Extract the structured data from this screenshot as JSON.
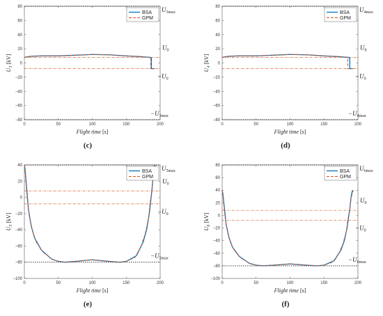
{
  "colors": {
    "bsa": "#0072BD",
    "gpm": "#D95319",
    "ref": "#222222",
    "ref_red": "#D95319"
  },
  "chart_data": [
    {
      "panel_label": "(c)",
      "type": "line",
      "ylabel_sym": "U",
      "ylabel_sub": "3",
      "ylabel_unit": "[kV]",
      "xlabel_text": "Flight time",
      "xlabel_unit": "[s]",
      "xlim": [
        0,
        200
      ],
      "ylim": [
        -80,
        80
      ],
      "xticks": [
        0,
        50,
        100,
        150,
        200
      ],
      "yticks": [
        -80,
        -60,
        -40,
        -20,
        0,
        20,
        40,
        60,
        80
      ],
      "grid": false,
      "legend_position": "top-right",
      "ref_lines": [
        {
          "y": 80,
          "label": "U3max",
          "sym": "U",
          "sub": "3max",
          "neg": false,
          "label_at": "top"
        },
        {
          "y": 8,
          "label": "U0",
          "sym": "U",
          "sub": "0",
          "neg": false,
          "label_at": "right"
        },
        {
          "y": -8,
          "label": "−U0",
          "sym": "U",
          "sub": "0",
          "neg": true,
          "label_at": "right"
        },
        {
          "y": -80,
          "label": "−U3max",
          "sym": "U",
          "sub": "3max",
          "neg": true,
          "label_at": "bottom"
        }
      ],
      "series": [
        {
          "name": "BSA",
          "style": "solid",
          "x": [
            0,
            10,
            25,
            50,
            75,
            100,
            125,
            150,
            170,
            185,
            187,
            187,
            192
          ],
          "y": [
            8,
            9.5,
            10,
            10,
            11,
            12,
            11.5,
            10,
            9,
            8,
            7,
            -8,
            -8
          ]
        },
        {
          "name": "GPM",
          "style": "dashed",
          "x": [
            0,
            10,
            25,
            50,
            75,
            100,
            125,
            150,
            170,
            184,
            186,
            186,
            192
          ],
          "y": [
            8,
            9.5,
            10,
            10,
            11,
            12,
            11.5,
            10,
            9,
            8,
            7,
            -8,
            -8
          ]
        }
      ]
    },
    {
      "panel_label": "(d)",
      "type": "line",
      "ylabel_sym": "U",
      "ylabel_sub": "4",
      "ylabel_unit": "[kV]",
      "xlabel_text": "Flight time",
      "xlabel_unit": "[s]",
      "xlim": [
        0,
        200
      ],
      "ylim": [
        -80,
        80
      ],
      "xticks": [
        0,
        50,
        100,
        150,
        200
      ],
      "yticks": [
        -80,
        -60,
        -40,
        -20,
        0,
        20,
        40,
        60,
        80
      ],
      "grid": false,
      "legend_position": "top-right",
      "ref_lines": [
        {
          "y": 80,
          "label": "U4max",
          "sym": "U",
          "sub": "4max",
          "neg": false,
          "label_at": "top"
        },
        {
          "y": 8,
          "label": "U0",
          "sym": "U",
          "sub": "0",
          "neg": false,
          "label_at": "right"
        },
        {
          "y": -8,
          "label": "−U0",
          "sym": "U",
          "sub": "0",
          "neg": true,
          "label_at": "right"
        },
        {
          "y": -80,
          "label": "−U4max",
          "sym": "U",
          "sub": "4max",
          "neg": true,
          "label_at": "bottom"
        }
      ],
      "series": [
        {
          "name": "BSA",
          "style": "solid",
          "x": [
            0,
            10,
            25,
            50,
            75,
            100,
            125,
            150,
            170,
            186,
            188,
            188,
            193
          ],
          "y": [
            8,
            9.5,
            10,
            10,
            11,
            12,
            11.5,
            10,
            9,
            8,
            7,
            -8,
            -8
          ]
        },
        {
          "name": "GPM",
          "style": "dashed",
          "x": [
            0,
            10,
            25,
            50,
            75,
            100,
            125,
            150,
            170,
            183,
            185,
            185,
            193
          ],
          "y": [
            8,
            9.5,
            10,
            10,
            11,
            12,
            11.5,
            10,
            9,
            8,
            7,
            -8,
            -8
          ]
        }
      ]
    },
    {
      "panel_label": "(e)",
      "type": "line",
      "ylabel_sym": "U",
      "ylabel_sub": "5",
      "ylabel_unit": "[kV]",
      "xlabel_text": "Flight time",
      "xlabel_unit": "[s]",
      "xlim": [
        0,
        200
      ],
      "ylim": [
        -100,
        40
      ],
      "xticks": [
        0,
        50,
        100,
        150,
        200
      ],
      "yticks": [
        -100,
        -80,
        -60,
        -40,
        -20,
        0,
        20,
        40
      ],
      "grid": false,
      "legend_position": "top-right",
      "ref_lines": [
        {
          "y": 40,
          "label": "U5max",
          "sym": "U",
          "sub": "5max",
          "neg": false,
          "label_at": "top"
        },
        {
          "y": 8,
          "label": "U0",
          "sym": "U",
          "sub": "0",
          "neg": false,
          "label_at": "right"
        },
        {
          "y": -8,
          "label": "−U0",
          "sym": "U",
          "sub": "0",
          "neg": true,
          "label_at": "right"
        },
        {
          "y": -80,
          "label": "−U5max",
          "sym": "U",
          "sub": "5max",
          "neg": true,
          "label_at": "bottom"
        }
      ],
      "series": [
        {
          "name": "BSA",
          "style": "solid",
          "x": [
            0,
            1,
            2,
            4,
            6,
            10,
            15,
            25,
            40,
            50,
            60,
            75,
            100,
            125,
            140,
            150,
            165,
            175,
            180,
            184,
            186,
            188,
            190,
            192
          ],
          "y": [
            40,
            35,
            25,
            5,
            -15,
            -35,
            -50,
            -65,
            -76,
            -79,
            -80,
            -79,
            -77,
            -79,
            -80,
            -79,
            -72,
            -55,
            -40,
            -20,
            -5,
            10,
            30,
            40
          ]
        },
        {
          "name": "GPM",
          "style": "dashed",
          "x": [
            0,
            1,
            2,
            4,
            7,
            12,
            18,
            28,
            42,
            52,
            62,
            75,
            100,
            125,
            140,
            150,
            163,
            172,
            178,
            183,
            185,
            188,
            190,
            193
          ],
          "y": [
            40,
            34,
            22,
            0,
            -22,
            -42,
            -56,
            -68,
            -77,
            -79,
            -80,
            -79,
            -77,
            -79,
            -80,
            -79,
            -74,
            -60,
            -45,
            -25,
            -8,
            10,
            28,
            40
          ]
        }
      ]
    },
    {
      "panel_label": "(f)",
      "type": "line",
      "ylabel_sym": "U",
      "ylabel_sub": "6",
      "ylabel_unit": "[kV]",
      "xlabel_text": "Flight time",
      "xlabel_unit": "[s]",
      "xlim": [
        0,
        200
      ],
      "ylim": [
        -100,
        80
      ],
      "xticks": [
        0,
        50,
        100,
        150,
        200
      ],
      "yticks": [
        -100,
        -80,
        -60,
        -40,
        -20,
        0,
        20,
        40,
        60,
        80
      ],
      "grid": false,
      "legend_position": "top-right",
      "ref_lines": [
        {
          "y": 80,
          "label": "U6max",
          "sym": "U",
          "sub": "6max",
          "neg": false,
          "label_at": "top"
        },
        {
          "y": 8,
          "label": "U0",
          "sym": "U",
          "sub": "0",
          "neg": false,
          "label_at": "right"
        },
        {
          "y": -8,
          "label": "−U0",
          "sym": "U",
          "sub": "0",
          "neg": true,
          "label_at": "right"
        },
        {
          "y": -80,
          "label": "−U6max",
          "sym": "U",
          "sub": "6max",
          "neg": true,
          "label_at": "bottom"
        }
      ],
      "series": [
        {
          "name": "BSA",
          "style": "solid",
          "x": [
            0,
            1,
            2,
            4,
            6,
            10,
            15,
            25,
            40,
            50,
            60,
            75,
            100,
            125,
            140,
            150,
            165,
            175,
            180,
            184,
            186,
            188,
            190,
            192
          ],
          "y": [
            40,
            35,
            25,
            5,
            -15,
            -35,
            -50,
            -65,
            -76,
            -79,
            -80,
            -79,
            -77,
            -79,
            -80,
            -79,
            -72,
            -55,
            -40,
            -20,
            -5,
            10,
            30,
            40
          ]
        },
        {
          "name": "GPM",
          "style": "dashed",
          "x": [
            0,
            1,
            2,
            4,
            7,
            12,
            18,
            28,
            42,
            52,
            62,
            75,
            100,
            125,
            140,
            150,
            163,
            172,
            178,
            183,
            185,
            188,
            190,
            193
          ],
          "y": [
            40,
            34,
            22,
            0,
            -22,
            -42,
            -56,
            -68,
            -77,
            -79,
            -80,
            -79,
            -77,
            -79,
            -80,
            -79,
            -74,
            -60,
            -45,
            -25,
            -8,
            10,
            28,
            40
          ]
        }
      ]
    }
  ]
}
